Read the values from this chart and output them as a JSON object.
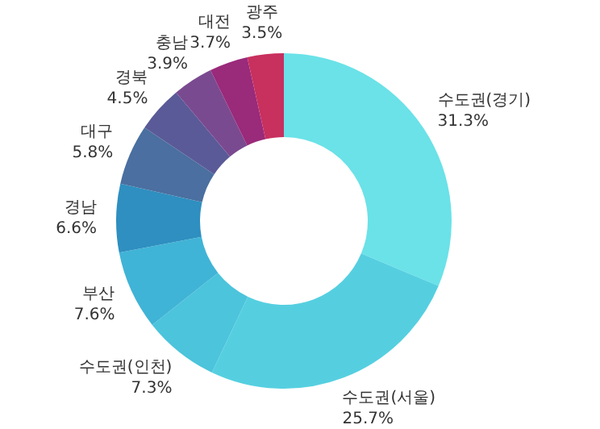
{
  "chart_data": {
    "type": "donut",
    "categories": [
      "수도권(경기)",
      "수도권(서울)",
      "수도권(인천)",
      "부산",
      "경남",
      "대구",
      "경북",
      "충남",
      "대전",
      "광주"
    ],
    "values": [
      31.3,
      25.7,
      7.3,
      7.6,
      6.6,
      5.8,
      4.5,
      3.9,
      3.7,
      3.5
    ],
    "value_labels": [
      "31.3%",
      "25.7%",
      "7.3%",
      "7.6%",
      "6.6%",
      "5.8%",
      "4.5%",
      "3.9%",
      "3.7%",
      "3.5%"
    ],
    "colors": [
      "#6ae2e8",
      "#55cfe0",
      "#4cc4dc",
      "#40b4d6",
      "#2e8fc0",
      "#4a6fa0",
      "#5a5a98",
      "#7a4a90",
      "#9a2a7a",
      "#c8305e"
    ],
    "legend": false
  }
}
